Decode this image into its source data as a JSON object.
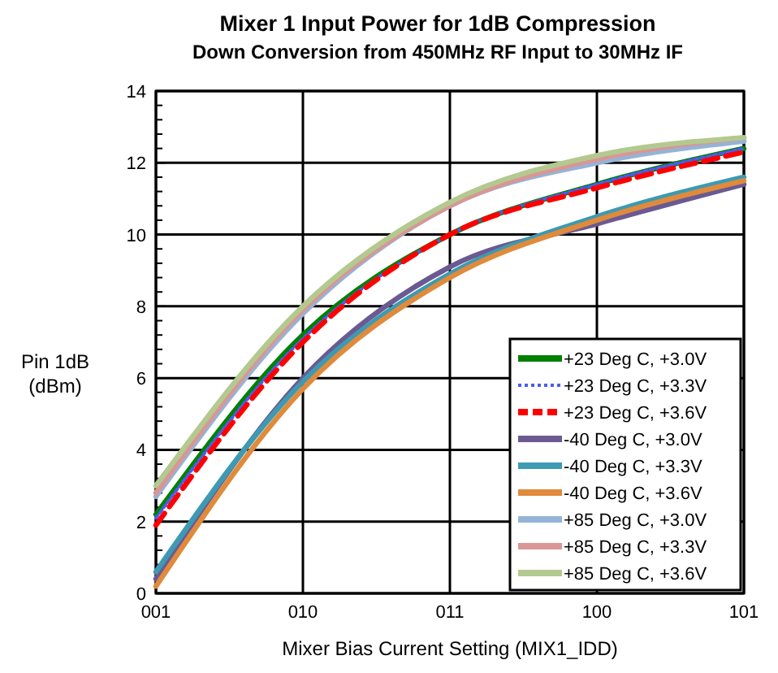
{
  "chart_data": {
    "type": "line",
    "title": "Mixer 1 Input Power for 1dB Compression",
    "subtitle": "Down Conversion from 450MHz RF Input to 30MHz IF",
    "xlabel": "Mixer Bias Current Setting (MIX1_IDD)",
    "ylabel": "Pin 1dB\n(dBm)",
    "categories": [
      "001",
      "010",
      "011",
      "100",
      "101"
    ],
    "ylim": [
      0,
      14
    ],
    "yticks": [
      0,
      {
        "value": 0.4,
        "label": null
      },
      {
        "value": 0.8,
        "label": null
      },
      {
        "value": 1.2,
        "label": null
      },
      {
        "value": 1.6,
        "label": null
      },
      2,
      {
        "value": 2.4,
        "label": null
      },
      {
        "value": 2.8,
        "label": null
      },
      {
        "value": 3.2,
        "label": null
      },
      {
        "value": 3.6,
        "label": null
      },
      4,
      {
        "value": 4.4,
        "label": null
      },
      {
        "value": 4.8,
        "label": null
      },
      {
        "value": 5.2,
        "label": null
      },
      {
        "value": 5.6,
        "label": null
      },
      6,
      {
        "value": 6.4,
        "label": null
      },
      {
        "value": 6.8,
        "label": null
      },
      {
        "value": 7.2,
        "label": null
      },
      {
        "value": 7.6,
        "label": null
      },
      8,
      {
        "value": 8.4,
        "label": null
      },
      {
        "value": 8.8,
        "label": null
      },
      {
        "value": 9.2,
        "label": null
      },
      {
        "value": 9.6,
        "label": null
      },
      10,
      {
        "value": 10.4,
        "label": null
      },
      {
        "value": 10.8,
        "label": null
      },
      {
        "value": 11.2,
        "label": null
      },
      {
        "value": 11.6,
        "label": null
      },
      12,
      {
        "value": 12.4,
        "label": null
      },
      {
        "value": 12.8,
        "label": null
      },
      {
        "value": 13.2,
        "label": null
      },
      {
        "value": 13.6,
        "label": null
      },
      14
    ],
    "grid": true,
    "legend": "bottom right",
    "series": [
      {
        "name": "+23 Deg C, +3.0V",
        "color": "#008000",
        "values": [
          2.2,
          7.2,
          10.0,
          11.4,
          12.4
        ]
      },
      {
        "name": "+23 Deg C, +3.3V",
        "color": "#4a5cf0",
        "line_style": "dotted",
        "values": [
          2.1,
          7.1,
          10.0,
          11.4,
          12.4
        ]
      },
      {
        "name": "+23 Deg C, +3.6V",
        "color": "#ff0000",
        "line_style": "dashed",
        "values": [
          1.9,
          7.0,
          10.0,
          11.3,
          12.3
        ]
      },
      {
        "name": "-40 Deg C, +3.0V",
        "color": "#6b5a92",
        "values": [
          0.4,
          6.0,
          9.1,
          10.3,
          11.4
        ]
      },
      {
        "name": "-40 Deg C, +3.3V",
        "color": "#3d9ab2",
        "values": [
          0.6,
          5.9,
          8.9,
          10.5,
          11.6
        ]
      },
      {
        "name": "-40 Deg C, +3.6V",
        "color": "#e08a3c",
        "values": [
          0.2,
          5.7,
          8.8,
          10.4,
          11.5
        ]
      },
      {
        "name": "+85 Deg C, +3.0V",
        "color": "#95b3d7",
        "values": [
          2.7,
          7.8,
          10.8,
          12.0,
          12.6
        ]
      },
      {
        "name": "+85 Deg C, +3.3V",
        "color": "#d99694",
        "values": [
          2.8,
          7.9,
          10.8,
          12.1,
          12.7
        ]
      },
      {
        "name": "+85 Deg C, +3.6V",
        "color": "#b3c98f",
        "values": [
          3.0,
          8.0,
          10.9,
          12.2,
          12.7
        ]
      }
    ]
  }
}
